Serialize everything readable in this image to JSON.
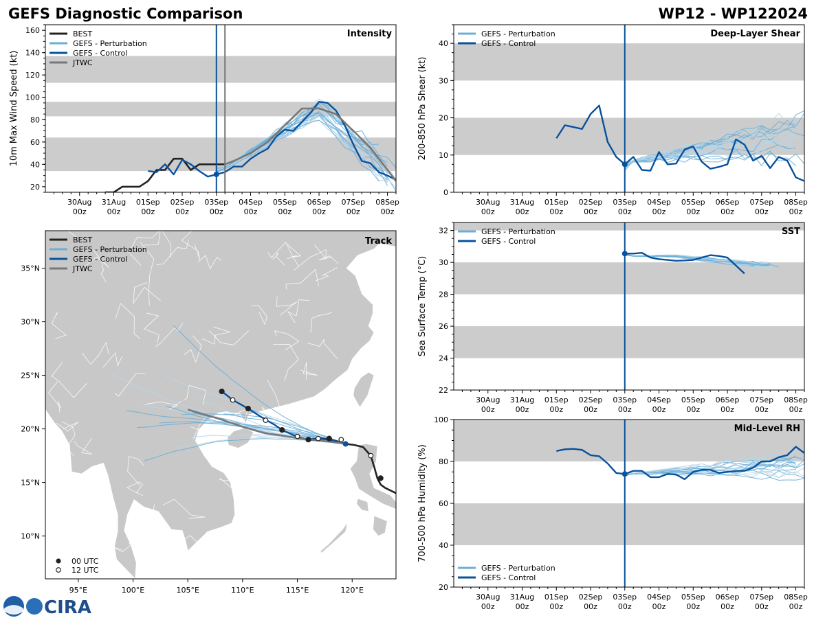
{
  "header": {
    "title": "GEFS Diagnostic Comparison",
    "storm_id": "WP12 - WP122024"
  },
  "colors": {
    "best": "#222222",
    "perturbation": "#6baed6",
    "control": "#08519c",
    "jtwc": "#777777",
    "band": "#cccccc",
    "land": "#c8c8c8",
    "border": "#ffffff"
  },
  "time_axis": {
    "start": "29Aug 00z",
    "end": "08Sep 06z",
    "ticks": [
      {
        "day": 1,
        "l1": "30Aug",
        "l2": "00z"
      },
      {
        "day": 2,
        "l1": "31Aug",
        "l2": "00z"
      },
      {
        "day": 3,
        "l1": "01Sep",
        "l2": "00z"
      },
      {
        "day": 4,
        "l1": "02Sep",
        "l2": "00z"
      },
      {
        "day": 5,
        "l1": "03Sep",
        "l2": "00z"
      },
      {
        "day": 6,
        "l1": "04Sep",
        "l2": "00z"
      },
      {
        "day": 7,
        "l1": "05Sep",
        "l2": "00z"
      },
      {
        "day": 8,
        "l1": "06Sep",
        "l2": "00z"
      },
      {
        "day": 9,
        "l1": "07Sep",
        "l2": "00z"
      },
      {
        "day": 10,
        "l1": "08Sep",
        "l2": "00z"
      }
    ],
    "init_day": 5.0
  },
  "chart_data": [
    {
      "id": "intensity",
      "type": "line",
      "title": "Intensity",
      "ylabel": "10m Max Wind Speed (kt)",
      "ylim": [
        15,
        165
      ],
      "yticks": [
        20,
        40,
        60,
        80,
        100,
        120,
        140,
        160
      ],
      "bands": [
        [
          34,
          64
        ],
        [
          83,
          96
        ],
        [
          113,
          137
        ]
      ],
      "vlines": [
        {
          "day": 5.0,
          "color": "control"
        },
        {
          "day": 5.25,
          "color": "jtwc"
        }
      ],
      "legend": [
        "BEST",
        "GEFS - Perturbation",
        "GEFS - Control",
        "JTWC"
      ],
      "series": [
        {
          "name": "BEST",
          "x": [
            1.75,
            2.0,
            2.25,
            2.5,
            2.75,
            3.0,
            3.25,
            3.5,
            3.75,
            4.0,
            4.25,
            4.5,
            4.75,
            5.0,
            5.25
          ],
          "y": [
            15,
            15,
            20,
            20,
            20,
            25,
            35,
            35,
            45,
            45,
            35,
            40,
            40,
            40,
            40
          ]
        },
        {
          "name": "GEFS - Control",
          "x": [
            3.0,
            3.25,
            3.5,
            3.75,
            4.0,
            4.25,
            4.5,
            4.75,
            5.0,
            5.25,
            5.5,
            5.75,
            6.0,
            6.25,
            6.5,
            6.75,
            7.0,
            7.25,
            7.5,
            7.75,
            8.0,
            8.25,
            8.5,
            8.75,
            9.0,
            9.25,
            9.5,
            9.75,
            10.0,
            10.25
          ],
          "y": [
            34,
            33,
            40,
            31,
            44,
            40,
            34,
            29,
            31,
            33,
            38,
            38,
            45,
            50,
            54,
            65,
            71,
            70,
            78,
            86,
            96,
            95,
            88,
            75,
            58,
            43,
            41,
            33,
            30,
            26
          ]
        },
        {
          "name": "JTWC",
          "x": [
            5.25,
            5.5,
            6.0,
            6.5,
            7.0,
            7.5,
            8.0,
            8.5,
            9.0,
            9.5,
            10.25
          ],
          "y": [
            40,
            43,
            50,
            60,
            75,
            90,
            90,
            85,
            70,
            55,
            25
          ]
        }
      ]
    },
    {
      "id": "shear",
      "type": "line",
      "title": "Deep-Layer Shear",
      "ylabel": "200-850 hPa Shear (kt)",
      "ylim": [
        0,
        45
      ],
      "yticks": [
        0,
        10,
        20,
        30,
        40
      ],
      "bands": [
        [
          10,
          20
        ],
        [
          30,
          40
        ]
      ],
      "vlines": [
        {
          "day": 5.0,
          "color": "control"
        }
      ],
      "legend": [
        "GEFS - Perturbation",
        "GEFS - Control"
      ],
      "series": [
        {
          "name": "GEFS - Control",
          "x": [
            3.0,
            3.25,
            3.5,
            3.75,
            4.0,
            4.25,
            4.5,
            4.75,
            5.0,
            5.25,
            5.5,
            5.75,
            6.0,
            6.25,
            6.5,
            6.75,
            7.0,
            7.25,
            7.5,
            7.75,
            8.0,
            8.25,
            8.5,
            8.75,
            9.0,
            9.25,
            9.5,
            9.75,
            10.0,
            10.25
          ],
          "y": [
            14.5,
            18,
            17.5,
            17,
            21,
            23.3,
            13.5,
            9.5,
            7.5,
            9.5,
            6,
            5.8,
            10.8,
            7.5,
            7.7,
            11.5,
            12.3,
            8.2,
            6.3,
            6.8,
            7.5,
            14.2,
            12.8,
            8.5,
            9.8,
            6.5,
            9.5,
            8.5,
            4,
            3
          ]
        }
      ]
    },
    {
      "id": "sst",
      "type": "line",
      "title": "SST",
      "ylabel": "Sea Surface Temp (°C)",
      "ylim": [
        22,
        32.5
      ],
      "yticks": [
        22,
        24,
        26,
        28,
        30,
        32
      ],
      "bands": [
        [
          24,
          26
        ],
        [
          28,
          30
        ],
        [
          32,
          32.5
        ]
      ],
      "vlines": [
        {
          "day": 5.0,
          "color": "control"
        }
      ],
      "legend": [
        "GEFS - Perturbation",
        "GEFS - Control"
      ],
      "series": [
        {
          "name": "GEFS - Control",
          "x": [
            5.0,
            5.25,
            5.5,
            5.75,
            6.0,
            6.25,
            6.5,
            6.75,
            7.0,
            7.25,
            7.5,
            7.75,
            8.0,
            8.25,
            8.5
          ],
          "y": [
            30.55,
            30.55,
            30.6,
            30.3,
            30.2,
            30.15,
            30.1,
            30.12,
            30.15,
            30.3,
            30.45,
            30.4,
            30.3,
            29.8,
            29.3
          ]
        }
      ]
    },
    {
      "id": "rh",
      "type": "line",
      "title": "Mid-Level RH",
      "ylabel": "700-500 hPa Humidity (%)",
      "ylim": [
        20,
        100
      ],
      "yticks": [
        20,
        40,
        60,
        80,
        100
      ],
      "bands": [
        [
          40,
          60
        ],
        [
          80,
          100
        ]
      ],
      "vlines": [
        {
          "day": 5.0,
          "color": "control"
        }
      ],
      "legend": [
        "GEFS - Perturbation",
        "GEFS - Control"
      ],
      "series": [
        {
          "name": "GEFS - Control",
          "x": [
            3.0,
            3.25,
            3.5,
            3.75,
            4.0,
            4.25,
            4.5,
            4.75,
            5.0,
            5.25,
            5.5,
            5.75,
            6.0,
            6.25,
            6.5,
            6.75,
            7.0,
            7.25,
            7.5,
            7.75,
            8.0,
            8.25,
            8.5,
            8.75,
            9.0,
            9.25,
            9.5,
            9.75,
            10.0,
            10.25
          ],
          "y": [
            85,
            85.8,
            86,
            85.5,
            83,
            82.5,
            79,
            74.5,
            74,
            75.5,
            75.5,
            72.5,
            72.5,
            74,
            73.8,
            71.5,
            75,
            76,
            76,
            74.5,
            75,
            75.5,
            75.5,
            77,
            80,
            80,
            82,
            83,
            87,
            84
          ]
        }
      ]
    },
    {
      "id": "track",
      "type": "scatter",
      "title": "Track",
      "xlim": [
        92,
        124
      ],
      "ylim": [
        6,
        38.5
      ],
      "xticks": [
        {
          "v": 95,
          "label": "95°E"
        },
        {
          "v": 100,
          "label": "100°E"
        },
        {
          "v": 105,
          "label": "105°E"
        },
        {
          "v": 110,
          "label": "110°E"
        },
        {
          "v": 115,
          "label": "115°E"
        },
        {
          "v": 120,
          "label": "120°E"
        }
      ],
      "yticks": [
        {
          "v": 10,
          "label": "10°N"
        },
        {
          "v": 15,
          "label": "15°N"
        },
        {
          "v": 20,
          "label": "20°N"
        },
        {
          "v": 25,
          "label": "25°N"
        },
        {
          "v": 30,
          "label": "30°N"
        },
        {
          "v": 35,
          "label": "35°N"
        }
      ],
      "legend": [
        "BEST",
        "GEFS - Perturbation",
        "GEFS - Control",
        "JTWC"
      ],
      "marker_legend": [
        "00 UTC",
        "12 UTC"
      ],
      "series": [
        {
          "name": "BEST",
          "lon": [
            124.0,
            123.0,
            122.6,
            122.3,
            122.0,
            121.7,
            121.0,
            120.2,
            119.4,
            118.8,
            118.0,
            117.2,
            116.4,
            115.8
          ],
          "lat": [
            14.0,
            14.5,
            14.8,
            15.4,
            16.5,
            17.5,
            18.3,
            18.5,
            18.6,
            18.8,
            19.0,
            19.1,
            19.0,
            19.0
          ]
        },
        {
          "name": "GEFS - Control",
          "lon": [
            119.4,
            118.8,
            117.8,
            116.8,
            115.9,
            114.9,
            113.6,
            112.9,
            112.2,
            111.4,
            110.5,
            109.8,
            109.1,
            108.6,
            108.1
          ],
          "lat": [
            18.6,
            18.8,
            19.0,
            19.1,
            19.0,
            19.3,
            19.9,
            20.4,
            20.8,
            21.3,
            21.9,
            22.3,
            22.7,
            23.1,
            23.5
          ]
        },
        {
          "name": "JTWC",
          "lon": [
            119.4,
            118.0,
            116.0,
            114.0,
            112.0,
            110.0,
            108.0,
            106.0,
            105.0
          ],
          "lat": [
            18.6,
            18.8,
            19.0,
            19.3,
            19.6,
            20.2,
            20.9,
            21.5,
            21.8
          ]
        }
      ],
      "markers": [
        {
          "lon": 122.6,
          "lat": 15.4,
          "kind": "00 UTC",
          "series": "BEST"
        },
        {
          "lon": 121.7,
          "lat": 17.5,
          "kind": "12 UTC",
          "series": "BEST"
        },
        {
          "lon": 119.0,
          "lat": 19.0,
          "kind": "12 UTC",
          "series": "GEFS - Control"
        },
        {
          "lon": 117.9,
          "lat": 19.1,
          "kind": "00 UTC",
          "series": "GEFS - Control"
        },
        {
          "lon": 116.9,
          "lat": 19.1,
          "kind": "12 UTC",
          "series": "GEFS - Control"
        },
        {
          "lon": 116.0,
          "lat": 19.0,
          "kind": "00 UTC",
          "series": "GEFS - Control"
        },
        {
          "lon": 115.0,
          "lat": 19.3,
          "kind": "12 UTC",
          "series": "GEFS - Control"
        },
        {
          "lon": 113.6,
          "lat": 19.9,
          "kind": "00 UTC",
          "series": "GEFS - Control"
        },
        {
          "lon": 112.1,
          "lat": 20.8,
          "kind": "12 UTC",
          "series": "GEFS - Control"
        },
        {
          "lon": 110.5,
          "lat": 21.9,
          "kind": "00 UTC",
          "series": "GEFS - Control"
        },
        {
          "lon": 109.1,
          "lat": 22.7,
          "kind": "12 UTC",
          "series": "GEFS - Control"
        },
        {
          "lon": 108.1,
          "lat": 23.5,
          "kind": "00 UTC",
          "series": "GEFS - Control"
        },
        {
          "lon": 119.4,
          "lat": 18.6,
          "kind": "init",
          "series": "GEFS - Control"
        }
      ]
    }
  ],
  "branding": {
    "noaa": "NOAA",
    "cira": "CIRA"
  }
}
